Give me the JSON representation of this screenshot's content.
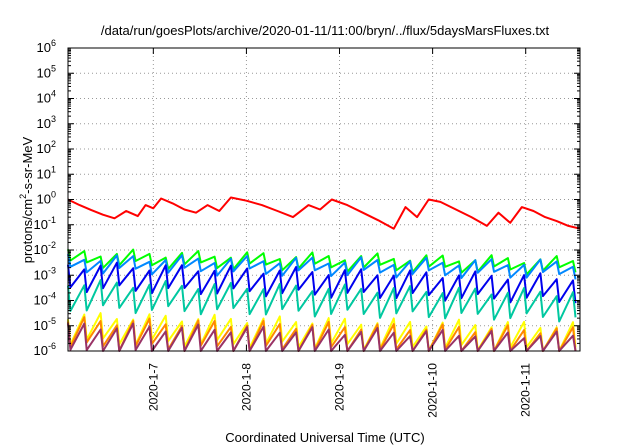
{
  "chart_data": {
    "type": "line",
    "title": "/data/run/goesPlots/archive/2020-01-11/11:00/bryn/../flux/5daysMarsFluxes.txt",
    "xlabel": "Coordinated Universal Time (UTC)",
    "ylabel": {
      "base": "protons/cm",
      "sup": "2",
      "rest": "-s-sr-MeV"
    },
    "yscale": "log",
    "ylim": [
      1e-06,
      1000000.0
    ],
    "xlim": [
      "2020-01-06T02:00",
      "2020-01-11T14:00"
    ],
    "grid": true,
    "legend": "none",
    "y_ticks": [
      {
        "base": "10",
        "exp": "-6"
      },
      {
        "base": "10",
        "exp": "-5"
      },
      {
        "base": "10",
        "exp": "-4"
      },
      {
        "base": "10",
        "exp": "-3"
      },
      {
        "base": "10",
        "exp": "-2"
      },
      {
        "base": "10",
        "exp": "-1"
      },
      {
        "base": "10",
        "exp": "0"
      },
      {
        "base": "10",
        "exp": "1"
      },
      {
        "base": "10",
        "exp": "2"
      },
      {
        "base": "10",
        "exp": "3"
      },
      {
        "base": "10",
        "exp": "4"
      },
      {
        "base": "10",
        "exp": "5"
      },
      {
        "base": "10",
        "exp": "6"
      }
    ],
    "x_ticks": [
      {
        "date": "2020-01-07T00:00",
        "label": "2020-1-7"
      },
      {
        "date": "2020-01-08T00:00",
        "label": "2020-1-8"
      },
      {
        "date": "2020-01-09T00:00",
        "label": "2020-1-9"
      },
      {
        "date": "2020-01-10T00:00",
        "label": "2020-1-10"
      },
      {
        "date": "2020-01-11T00:00",
        "label": "2020-1-11"
      }
    ],
    "series": [
      {
        "color": "#ff0000",
        "width": 2,
        "x": [
          "2020-01-06T02:00",
          "2020-01-06T05:00",
          "2020-01-06T08:00",
          "2020-01-06T11:00",
          "2020-01-06T14:00",
          "2020-01-06T17:00",
          "2020-01-06T20:00",
          "2020-01-06T22:00",
          "2020-01-07T00:00",
          "2020-01-07T02:00",
          "2020-01-07T05:00",
          "2020-01-07T08:00",
          "2020-01-07T11:00",
          "2020-01-07T14:00",
          "2020-01-07T17:00",
          "2020-01-07T20:00",
          "2020-01-08T00:00",
          "2020-01-08T04:00",
          "2020-01-08T08:00",
          "2020-01-08T12:00",
          "2020-01-08T16:00",
          "2020-01-08T19:00",
          "2020-01-08T22:00",
          "2020-01-09T02:00",
          "2020-01-09T06:00",
          "2020-01-09T10:00",
          "2020-01-09T14:00",
          "2020-01-09T17:00",
          "2020-01-09T20:00",
          "2020-01-09T23:00",
          "2020-01-10T02:00",
          "2020-01-10T06:00",
          "2020-01-10T10:00",
          "2020-01-10T14:00",
          "2020-01-10T17:00",
          "2020-01-10T20:00",
          "2020-01-10T23:00",
          "2020-01-11T02:00",
          "2020-01-11T05:00",
          "2020-01-11T08:00",
          "2020-01-11T11:00",
          "2020-01-11T14:00"
        ],
        "y": [
          1.0,
          0.6,
          0.38,
          0.25,
          0.18,
          0.35,
          0.22,
          0.6,
          0.45,
          1.1,
          0.7,
          0.4,
          0.3,
          0.6,
          0.35,
          1.2,
          0.9,
          0.6,
          0.35,
          0.2,
          0.6,
          0.4,
          1.0,
          0.6,
          0.3,
          0.15,
          0.07,
          0.5,
          0.2,
          1.0,
          0.8,
          0.4,
          0.2,
          0.09,
          0.3,
          0.12,
          0.5,
          0.35,
          0.2,
          0.14,
          0.09,
          0.07
        ]
      },
      {
        "color": "#00ff00",
        "width": 2,
        "x": [
          "2020-01-06T02:00",
          "2020-01-11T14:00"
        ],
        "y": [
          0.008,
          0.004
        ],
        "sawtooth": {
          "period_hours": 4.2,
          "amp_dec": 0.45
        }
      },
      {
        "color": "#0088ff",
        "width": 2,
        "x": [
          "2020-01-06T02:00",
          "2020-01-11T14:00"
        ],
        "y": [
          0.005,
          0.003
        ],
        "sawtooth": {
          "period_hours": 4.2,
          "amp_dec": 0.5
        }
      },
      {
        "color": "#0000ee",
        "width": 2,
        "x": [
          "2020-01-06T02:00",
          "2020-01-11T14:00"
        ],
        "y": [
          0.0025,
          0.0008
        ],
        "sawtooth": {
          "period_hours": 4.2,
          "amp_dec": 0.9
        }
      },
      {
        "color": "#00c8a0",
        "width": 2,
        "x": [
          "2020-01-06T02:00",
          "2020-01-11T14:00"
        ],
        "y": [
          0.0005,
          0.0002
        ],
        "sawtooth": {
          "period_hours": 4.2,
          "amp_dec": 1.0
        }
      },
      {
        "color": "#ffff00",
        "width": 2,
        "x": [
          "2020-01-06T02:00",
          "2020-01-11T14:00"
        ],
        "y": [
          2.5e-05,
          1e-05
        ],
        "sawtooth": {
          "period_hours": 4.2,
          "amp_dec": 1.0
        }
      },
      {
        "color": "#ff8800",
        "width": 2,
        "x": [
          "2020-01-06T02:00",
          "2020-01-11T14:00"
        ],
        "y": [
          1.6e-05,
          6.5e-06
        ],
        "sawtooth": {
          "period_hours": 4.2,
          "amp_dec": 1.0
        }
      },
      {
        "color": "#993366",
        "width": 2,
        "x": [
          "2020-01-06T02:00",
          "2020-01-11T14:00"
        ],
        "y": [
          1e-05,
          4e-06
        ],
        "sawtooth": {
          "period_hours": 4.2,
          "amp_dec": 1.05
        }
      }
    ]
  }
}
